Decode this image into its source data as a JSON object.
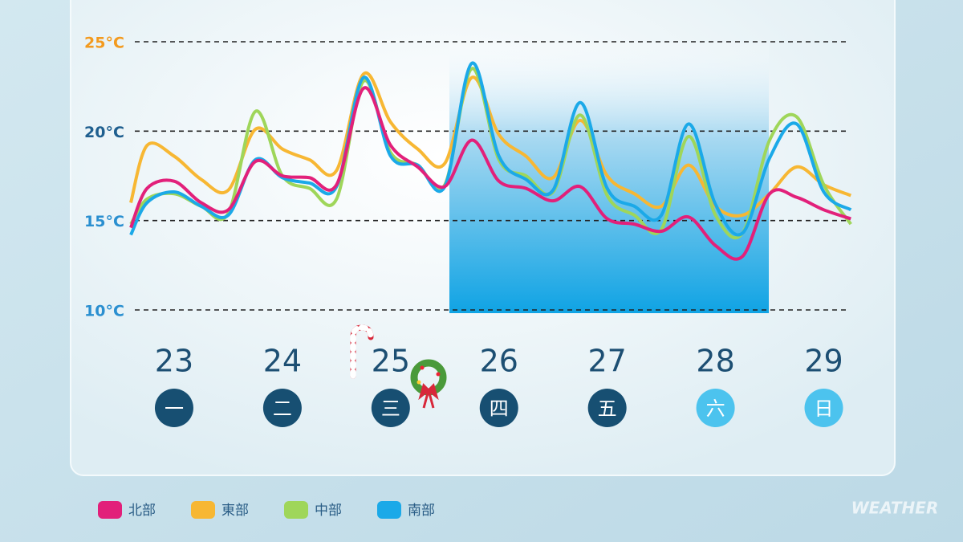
{
  "chart_data": {
    "type": "line",
    "x": [
      22.6,
      22.75,
      23,
      23.25,
      23.5,
      23.75,
      24,
      24.25,
      24.5,
      24.75,
      25,
      25.25,
      25.5,
      25.75,
      26,
      26.25,
      26.5,
      26.75,
      27,
      27.25,
      27.5,
      27.75,
      28,
      28.25,
      28.5,
      28.75,
      29,
      29.25
    ],
    "xlim": [
      22.6,
      29.3
    ],
    "xticks": [
      23,
      24,
      25,
      26,
      27,
      28,
      29
    ],
    "weekdays": [
      "一",
      "二",
      "三",
      "四",
      "五",
      "六",
      "日"
    ],
    "weekday_colors": [
      "#174f72",
      "#174f72",
      "#174f72",
      "#174f72",
      "#174f72",
      "#4cc3ee",
      "#4cc3ee"
    ],
    "ylim": [
      10,
      25
    ],
    "yticks": [
      {
        "value": 25,
        "label": "25°C"
      },
      {
        "value": 20,
        "label": "20°C"
      },
      {
        "value": 15,
        "label": "15°C"
      },
      {
        "value": 10,
        "label": "10°C"
      }
    ],
    "ytick_colors": [
      "#f39a1e",
      "#1f5f8f",
      "#2a8fd0",
      "#2a8fd0"
    ],
    "grid": true,
    "series": [
      {
        "name": "北部",
        "color": "#e2207a",
        "values": [
          14.6,
          16.8,
          17.2,
          16.0,
          15.6,
          18.3,
          17.5,
          17.4,
          17.0,
          22.4,
          19.2,
          18.0,
          16.9,
          19.5,
          17.2,
          16.8,
          16.1,
          16.9,
          15.1,
          14.8,
          14.4,
          15.2,
          13.6,
          13.0,
          16.5,
          16.3,
          15.6,
          15.1
        ]
      },
      {
        "name": "東部",
        "color": "#f7b733",
        "values": [
          16.0,
          19.2,
          18.6,
          17.3,
          16.7,
          20.1,
          19.0,
          18.4,
          17.8,
          23.2,
          20.5,
          19.0,
          18.2,
          23.0,
          19.8,
          18.6,
          17.4,
          20.6,
          17.5,
          16.5,
          15.8,
          18.1,
          15.8,
          15.3,
          16.5,
          18.0,
          17.0,
          16.4
        ]
      },
      {
        "name": "中部",
        "color": "#9fd65a",
        "values": [
          14.8,
          16.2,
          16.5,
          15.8,
          15.4,
          21.1,
          17.5,
          16.8,
          16.2,
          22.8,
          18.8,
          18.1,
          17.0,
          23.5,
          18.4,
          17.5,
          16.6,
          20.9,
          16.4,
          15.3,
          14.5,
          19.7,
          15.3,
          14.3,
          19.5,
          20.8,
          17.0,
          14.8
        ]
      },
      {
        "name": "南部",
        "color": "#1ba9e8",
        "values": [
          14.2,
          16.0,
          16.6,
          15.8,
          15.3,
          18.4,
          17.4,
          17.1,
          16.9,
          23.0,
          18.6,
          18.1,
          16.9,
          23.8,
          18.6,
          17.3,
          16.7,
          21.6,
          16.8,
          15.8,
          15.3,
          20.4,
          15.9,
          14.3,
          18.5,
          20.4,
          16.6,
          15.6
        ]
      }
    ],
    "watermark": "WEATHER"
  }
}
